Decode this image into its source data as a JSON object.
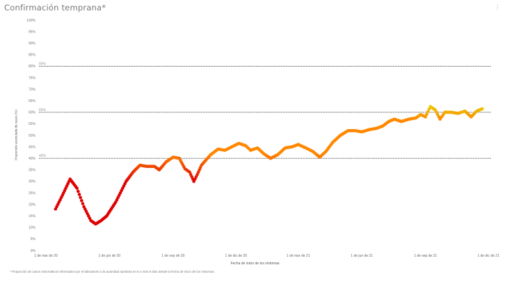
{
  "header": {
    "title": "Confirmación temprana*",
    "menu_glyph": "⋮"
  },
  "footnote": "* Proporción de casos sintomáticos informados por el laboratorio a la autoridad sanitaria en 6 o más 8 días desde la fecha de inicio de los síntomas",
  "chart_data": {
    "type": "scatter",
    "title": "Confirmación temprana*",
    "xlabel": "Fecha de inicio de los síntomas",
    "ylabel": "Proporción acumulada de casos (%)",
    "ylim": [
      0,
      100
    ],
    "yticks": [
      "0%",
      "5%",
      "10%",
      "15%",
      "20%",
      "25%",
      "30%",
      "35%",
      "40%",
      "45%",
      "50%",
      "55%",
      "60%",
      "65%",
      "70%",
      "75%",
      "80%",
      "85%",
      "90%",
      "95%",
      "100%"
    ],
    "xlim": [
      "2020-02-20",
      "2021-12-05"
    ],
    "xticks": [
      {
        "date": "2020-03-01",
        "label": "1 de mar de 20"
      },
      {
        "date": "2020-06-01",
        "label": "1 de jun de 20"
      },
      {
        "date": "2020-09-01",
        "label": "1 de sep de 20"
      },
      {
        "date": "2020-12-01",
        "label": "1 de dic de 20"
      },
      {
        "date": "2021-03-01",
        "label": "1 de mar de 21"
      },
      {
        "date": "2021-06-01",
        "label": "1 de jun de 21"
      },
      {
        "date": "2021-09-01",
        "label": "1 de sep de 21"
      },
      {
        "date": "2021-12-01",
        "label": "1 de dic de 21"
      }
    ],
    "reference_lines": [
      {
        "value": 80,
        "label": "80%"
      },
      {
        "value": 60,
        "label": "60%"
      },
      {
        "value": 40,
        "label": "40%"
      }
    ],
    "grid": false,
    "color_scale": {
      "low": "#e00000",
      "mid": "#ff8800",
      "high": "#e8d000"
    },
    "points": [
      {
        "x": "2020-03-15",
        "y": 18
      },
      {
        "x": "2020-03-25",
        "y": 24
      },
      {
        "x": "2020-04-05",
        "y": 31
      },
      {
        "x": "2020-04-15",
        "y": 27
      },
      {
        "x": "2020-04-25",
        "y": 19
      },
      {
        "x": "2020-05-05",
        "y": 13
      },
      {
        "x": "2020-05-12",
        "y": 11.5
      },
      {
        "x": "2020-05-20",
        "y": 13
      },
      {
        "x": "2020-05-28",
        "y": 15
      },
      {
        "x": "2020-06-10",
        "y": 21
      },
      {
        "x": "2020-06-25",
        "y": 30
      },
      {
        "x": "2020-07-05",
        "y": 34
      },
      {
        "x": "2020-07-15",
        "y": 37
      },
      {
        "x": "2020-07-25",
        "y": 36.5
      },
      {
        "x": "2020-08-05",
        "y": 36.5
      },
      {
        "x": "2020-08-12",
        "y": 35
      },
      {
        "x": "2020-08-22",
        "y": 38.5
      },
      {
        "x": "2020-09-01",
        "y": 40.5
      },
      {
        "x": "2020-09-10",
        "y": 40
      },
      {
        "x": "2020-09-18",
        "y": 35.5
      },
      {
        "x": "2020-09-25",
        "y": 34
      },
      {
        "x": "2020-10-01",
        "y": 30
      },
      {
        "x": "2020-10-06",
        "y": 33
      },
      {
        "x": "2020-10-12",
        "y": 37
      },
      {
        "x": "2020-10-25",
        "y": 41.5
      },
      {
        "x": "2020-11-05",
        "y": 44
      },
      {
        "x": "2020-11-15",
        "y": 43.5
      },
      {
        "x": "2020-11-25",
        "y": 45
      },
      {
        "x": "2020-12-05",
        "y": 46.5
      },
      {
        "x": "2020-12-15",
        "y": 45.5
      },
      {
        "x": "2020-12-22",
        "y": 43.5
      },
      {
        "x": "2021-01-01",
        "y": 44.5
      },
      {
        "x": "2021-01-10",
        "y": 42
      },
      {
        "x": "2021-01-20",
        "y": 40
      },
      {
        "x": "2021-01-30",
        "y": 41.5
      },
      {
        "x": "2021-02-10",
        "y": 44.5
      },
      {
        "x": "2021-02-20",
        "y": 45
      },
      {
        "x": "2021-03-01",
        "y": 46
      },
      {
        "x": "2021-03-12",
        "y": 44.5
      },
      {
        "x": "2021-03-22",
        "y": 43
      },
      {
        "x": "2021-04-01",
        "y": 40.5
      },
      {
        "x": "2021-04-10",
        "y": 43
      },
      {
        "x": "2021-04-20",
        "y": 47
      },
      {
        "x": "2021-05-01",
        "y": 50
      },
      {
        "x": "2021-05-12",
        "y": 52
      },
      {
        "x": "2021-05-22",
        "y": 52
      },
      {
        "x": "2021-06-01",
        "y": 51.5
      },
      {
        "x": "2021-06-12",
        "y": 52.5
      },
      {
        "x": "2021-06-22",
        "y": 53
      },
      {
        "x": "2021-07-01",
        "y": 54
      },
      {
        "x": "2021-07-10",
        "y": 56
      },
      {
        "x": "2021-07-18",
        "y": 57
      },
      {
        "x": "2021-07-28",
        "y": 56
      },
      {
        "x": "2021-08-08",
        "y": 57
      },
      {
        "x": "2021-08-18",
        "y": 57.5
      },
      {
        "x": "2021-08-25",
        "y": 59
      },
      {
        "x": "2021-09-01",
        "y": 58
      },
      {
        "x": "2021-09-08",
        "y": 62.5
      },
      {
        "x": "2021-09-15",
        "y": 61
      },
      {
        "x": "2021-09-22",
        "y": 57
      },
      {
        "x": "2021-09-29",
        "y": 60
      },
      {
        "x": "2021-10-08",
        "y": 60
      },
      {
        "x": "2021-10-18",
        "y": 59.5
      },
      {
        "x": "2021-10-28",
        "y": 60.5
      },
      {
        "x": "2021-11-06",
        "y": 58
      },
      {
        "x": "2021-11-14",
        "y": 60.5
      },
      {
        "x": "2021-11-22",
        "y": 61.5
      }
    ]
  }
}
